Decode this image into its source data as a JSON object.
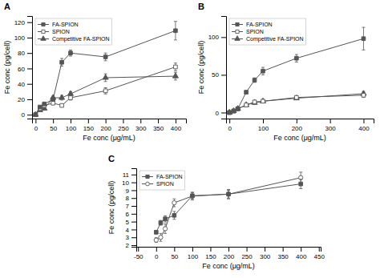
{
  "chart_data": [
    {
      "type": "line",
      "title": "A",
      "xlabel": "Fe conc (μg/mL)",
      "ylabel": "Fe conc (pg/cell)",
      "x": [
        0,
        12.5,
        25,
        50,
        75,
        100,
        200,
        400
      ],
      "xlim": [
        -10,
        430
      ],
      "ylim": [
        -5,
        128
      ],
      "xticks": [
        0,
        50,
        100,
        150,
        200,
        250,
        300,
        350,
        400
      ],
      "yticks": [
        0,
        20,
        40,
        60,
        80,
        100,
        120
      ],
      "legend": "upper left",
      "series": [
        {
          "name": "FA-SPION",
          "color": "#555555",
          "marker": "square",
          "values": [
            0,
            10,
            14,
            20,
            68,
            80,
            75,
            109
          ],
          "errors": [
            0,
            1.5,
            1.5,
            2,
            5,
            4,
            5,
            12
          ]
        },
        {
          "name": "SPION",
          "color": "#555555",
          "marker": "open-square",
          "values": [
            0,
            8,
            12,
            15,
            12,
            22,
            31,
            62
          ],
          "errors": [
            0,
            1,
            1.5,
            2,
            2,
            3,
            4,
            5
          ]
        },
        {
          "name": "Competitive FA-SPION",
          "color": "#555555",
          "marker": "triangle",
          "values": [
            0,
            6,
            8,
            22,
            22,
            27,
            48,
            50
          ],
          "errors": [
            0,
            1,
            1.5,
            2,
            3,
            3,
            5,
            5
          ]
        }
      ]
    },
    {
      "type": "line",
      "title": "B",
      "xlabel": "Fe conc (μg/mL)",
      "ylabel": "Fe conc (pg/cell)",
      "x": [
        0,
        12.5,
        25,
        50,
        75,
        100,
        200,
        400
      ],
      "xlim": [
        -10,
        430
      ],
      "ylim": [
        -8,
        128
      ],
      "xticks": [
        0,
        100,
        200,
        300,
        400
      ],
      "yticks": [
        0,
        50,
        100
      ],
      "legend": "upper left",
      "series": [
        {
          "name": "FA-SPION",
          "color": "#555555",
          "marker": "square",
          "values": [
            0,
            2,
            5,
            27,
            43,
            55,
            72,
            98
          ],
          "errors": [
            0,
            1,
            1.5,
            2,
            3,
            5,
            5,
            15
          ]
        },
        {
          "name": "SPION",
          "color": "#555555",
          "marker": "open-square",
          "values": [
            0,
            2,
            5,
            10,
            14,
            15,
            20,
            23
          ],
          "errors": [
            0,
            1,
            1,
            1.5,
            2,
            2,
            2,
            3
          ]
        },
        {
          "name": "Competitive FA-SPION",
          "color": "#555555",
          "marker": "triangle",
          "values": [
            0,
            2,
            5,
            10,
            13,
            15,
            19,
            25
          ],
          "errors": [
            0,
            1,
            1,
            1.5,
            2,
            2,
            2,
            3
          ]
        }
      ]
    },
    {
      "type": "line",
      "title": "C",
      "xlabel": "Fe conc (μg/mL)",
      "ylabel": "Fe conc (pg/cell)",
      "x": [
        0,
        12.5,
        25,
        50,
        100,
        200,
        400
      ],
      "xlim": [
        -55,
        455
      ],
      "ylim": [
        1.8,
        11.8
      ],
      "xticks": [
        -50,
        0,
        50,
        100,
        150,
        200,
        250,
        300,
        350,
        400,
        450
      ],
      "yticks": [
        2,
        3,
        4,
        5,
        6,
        7,
        8,
        9,
        10,
        11
      ],
      "legend": "upper left",
      "series": [
        {
          "name": "FA-SPION",
          "color": "#555555",
          "marker": "square",
          "values": [
            3.65,
            4.85,
            5.35,
            5.8,
            8.3,
            8.5,
            9.8
          ],
          "errors": [
            0.2,
            0.3,
            0.4,
            0.5,
            0.4,
            0.5,
            0.6
          ]
        },
        {
          "name": "SPION",
          "color": "#555555",
          "marker": "open-circle",
          "values": [
            2.65,
            3.0,
            4.1,
            7.4,
            8.25,
            8.5,
            10.6
          ],
          "errors": [
            0.3,
            0.5,
            0.6,
            0.5,
            0.5,
            0.6,
            0.7
          ]
        }
      ]
    }
  ]
}
